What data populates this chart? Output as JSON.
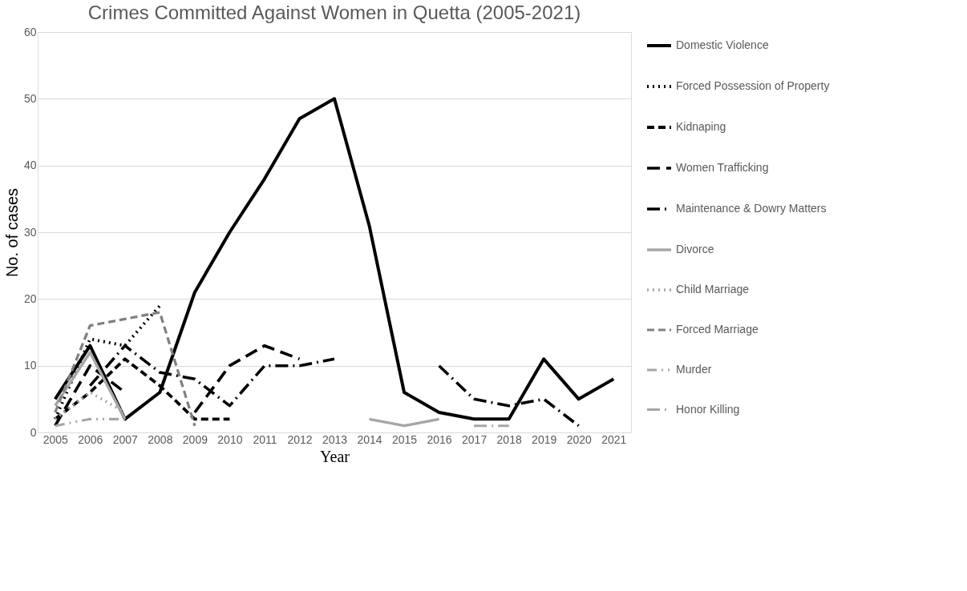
{
  "chart_data": {
    "type": "line",
    "title": "Crimes Committed Against Women in Quetta (2005-2021)",
    "xlabel": "Year",
    "ylabel": "No. of cases",
    "categories": [
      "2005",
      "2006",
      "2007",
      "2008",
      "2009",
      "2010",
      "2011",
      "2012",
      "2013",
      "2014",
      "2015",
      "2016",
      "2017",
      "2018",
      "2019",
      "2020",
      "2021"
    ],
    "ylim": [
      0,
      60
    ],
    "yticks": [
      0,
      10,
      20,
      30,
      40,
      50,
      60
    ],
    "grid": "y",
    "legend": "right",
    "series": [
      {
        "name": "Domestic Violence",
        "color": "#000000",
        "line_style": "solid",
        "values": [
          5,
          13,
          2,
          6,
          21,
          30,
          38,
          47,
          50,
          31,
          6,
          3,
          2,
          2,
          11,
          5,
          8
        ]
      },
      {
        "name": "Forced Possession of Property",
        "color": "#000000",
        "line_style": "dotted",
        "values": [
          2,
          14,
          13,
          19,
          null,
          null,
          null,
          null,
          null,
          null,
          null,
          null,
          null,
          null,
          null,
          null,
          null
        ]
      },
      {
        "name": "Kidnaping",
        "color": "#000000",
        "line_style": "dashed",
        "values": [
          2,
          6,
          11,
          7,
          2,
          2,
          null,
          null,
          null,
          null,
          null,
          null,
          null,
          null,
          null,
          null,
          null
        ]
      },
      {
        "name": "Women Trafficking",
        "color": "#000000",
        "line_style": "longdash",
        "values": [
          1,
          10,
          6,
          null,
          3,
          10,
          13,
          11,
          null,
          null,
          null,
          null,
          null,
          null,
          null,
          null,
          null
        ]
      },
      {
        "name": "Maintenance & Dowry Matters",
        "color": "#000000",
        "line_style": "dashdot",
        "values": [
          null,
          7,
          13,
          9,
          8,
          4,
          10,
          10,
          11,
          null,
          null,
          10,
          5,
          4,
          5,
          1,
          null
        ]
      },
      {
        "name": "Divorce",
        "color": "#a6a6a6",
        "line_style": "solid",
        "values": [
          4,
          12,
          2,
          null,
          null,
          null,
          null,
          null,
          null,
          2,
          1,
          2,
          null,
          null,
          null,
          null,
          null
        ]
      },
      {
        "name": "Child Marriage",
        "color": "#a6a6a6",
        "line_style": "dotted",
        "values": [
          2,
          6,
          3,
          null,
          null,
          null,
          null,
          null,
          null,
          null,
          null,
          null,
          null,
          null,
          null,
          null,
          null
        ]
      },
      {
        "name": "Forced Marriage",
        "color": "#808080",
        "line_style": "dashed",
        "values": [
          3,
          16,
          17,
          18,
          1,
          null,
          null,
          null,
          null,
          null,
          null,
          null,
          null,
          null,
          null,
          null,
          null
        ]
      },
      {
        "name": "Murder",
        "color": "#a6a6a6",
        "line_style": "dashdotdot",
        "values": [
          1,
          2,
          2,
          null,
          null,
          null,
          null,
          null,
          null,
          null,
          null,
          null,
          null,
          null,
          null,
          null,
          null
        ]
      },
      {
        "name": "Honor Killing",
        "color": "#a6a6a6",
        "line_style": "dashdot",
        "values": [
          null,
          null,
          null,
          null,
          null,
          null,
          null,
          null,
          null,
          null,
          null,
          null,
          1,
          1,
          null,
          null,
          null
        ]
      }
    ]
  }
}
